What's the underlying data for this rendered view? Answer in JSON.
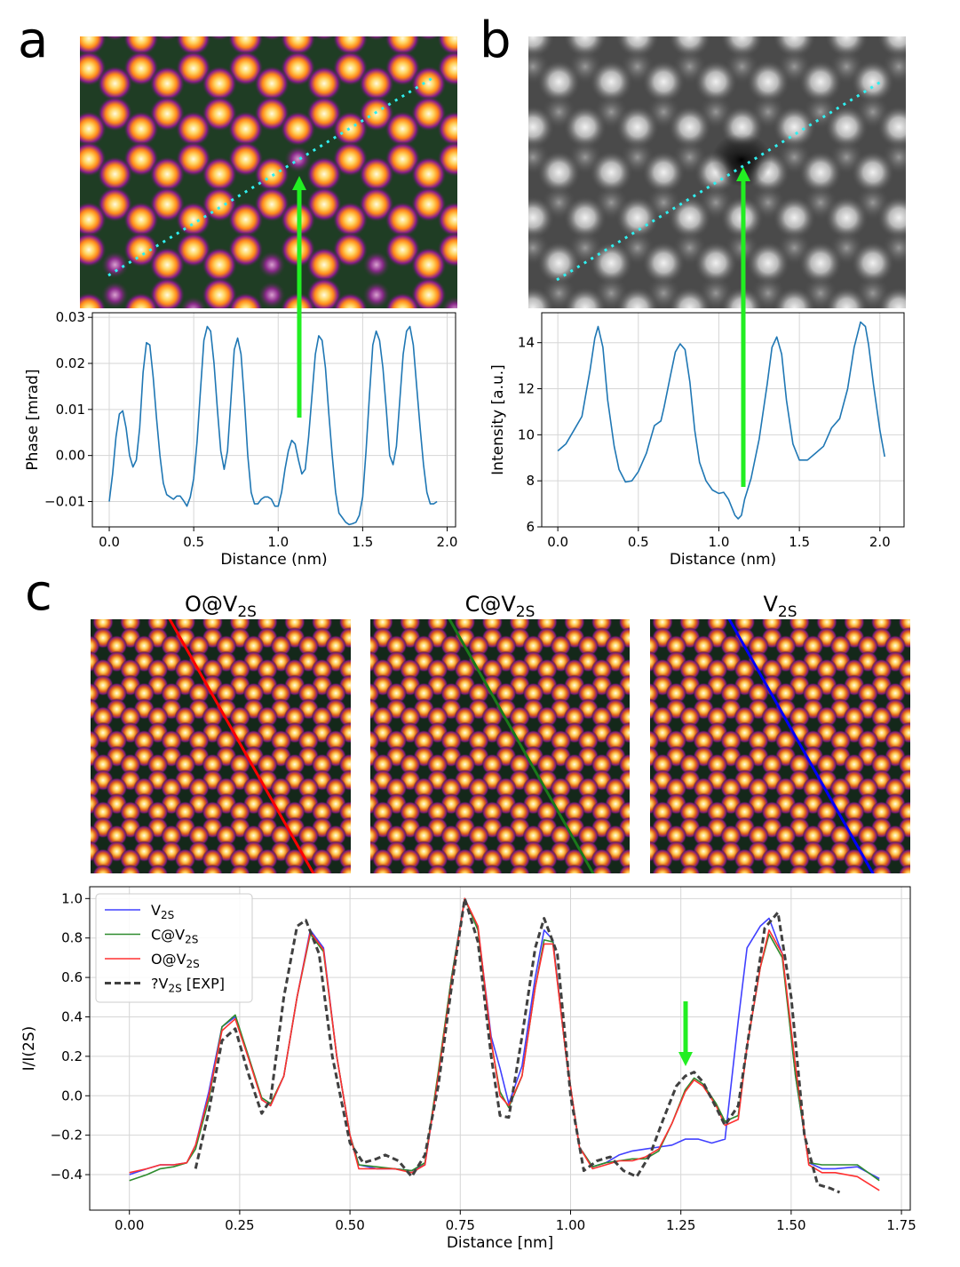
{
  "panels": {
    "a": "a",
    "b": "b",
    "c": "c"
  },
  "chart_data": [
    {
      "id": "a",
      "type": "line",
      "xlabel": "Distance (nm)",
      "ylabel": "Phase [mrad]",
      "xlim": [
        -0.1,
        2.05
      ],
      "ylim": [
        -0.0155,
        0.031
      ],
      "xticks": [
        0.0,
        0.5,
        1.0,
        1.5,
        2.0
      ],
      "xticklabels": [
        "0.0",
        "0.5",
        "1.0",
        "1.5",
        "2.0"
      ],
      "yticks": [
        -0.01,
        0.0,
        0.01,
        0.02,
        0.03
      ],
      "yticklabels": [
        "−0.01",
        "0.00",
        "0.01",
        "0.02",
        "0.03"
      ],
      "series": [
        {
          "name": "phase",
          "color": "#1f77b4",
          "x": [
            0.0,
            0.02,
            0.04,
            0.06,
            0.08,
            0.1,
            0.12,
            0.14,
            0.16,
            0.18,
            0.2,
            0.22,
            0.24,
            0.26,
            0.28,
            0.3,
            0.32,
            0.34,
            0.36,
            0.38,
            0.4,
            0.42,
            0.44,
            0.46,
            0.48,
            0.5,
            0.52,
            0.54,
            0.56,
            0.58,
            0.6,
            0.62,
            0.64,
            0.66,
            0.68,
            0.7,
            0.72,
            0.74,
            0.76,
            0.78,
            0.8,
            0.82,
            0.84,
            0.86,
            0.88,
            0.9,
            0.92,
            0.94,
            0.96,
            0.98,
            1.0,
            1.02,
            1.04,
            1.06,
            1.08,
            1.1,
            1.12,
            1.14,
            1.16,
            1.18,
            1.2,
            1.22,
            1.24,
            1.26,
            1.28,
            1.3,
            1.32,
            1.34,
            1.36,
            1.38,
            1.4,
            1.42,
            1.44,
            1.46,
            1.48,
            1.5,
            1.52,
            1.54,
            1.56,
            1.58,
            1.6,
            1.62,
            1.64,
            1.66,
            1.68,
            1.7,
            1.72,
            1.74,
            1.76,
            1.78,
            1.8,
            1.82,
            1.84,
            1.86,
            1.88,
            1.9,
            1.92,
            1.94
          ],
          "y": [
            -0.01,
            -0.004,
            0.004,
            0.009,
            0.0097,
            0.006,
            0.0,
            -0.0025,
            -0.001,
            0.006,
            0.018,
            0.0245,
            0.024,
            0.017,
            0.008,
            0.0,
            -0.006,
            -0.0085,
            -0.009,
            -0.0095,
            -0.0088,
            -0.0088,
            -0.0098,
            -0.011,
            -0.009,
            -0.005,
            0.003,
            0.014,
            0.025,
            0.028,
            0.027,
            0.02,
            0.01,
            0.001,
            -0.003,
            0.001,
            0.012,
            0.023,
            0.0255,
            0.022,
            0.012,
            0.0,
            -0.008,
            -0.0105,
            -0.0105,
            -0.0095,
            -0.009,
            -0.009,
            -0.0095,
            -0.011,
            -0.011,
            -0.008,
            -0.003,
            0.001,
            0.0033,
            0.0025,
            -0.001,
            -0.004,
            -0.003,
            0.004,
            0.013,
            0.022,
            0.026,
            0.025,
            0.019,
            0.009,
            0.0,
            -0.008,
            -0.0125,
            -0.0135,
            -0.0145,
            -0.015,
            -0.0148,
            -0.0145,
            -0.013,
            -0.009,
            0.001,
            0.013,
            0.024,
            0.027,
            0.025,
            0.019,
            0.01,
            0.0,
            -0.002,
            0.002,
            0.012,
            0.022,
            0.027,
            0.028,
            0.024,
            0.015,
            0.006,
            -0.002,
            -0.008,
            -0.0105,
            -0.0105,
            -0.01
          ]
        }
      ],
      "annotations": [
        "cyan dotted line profile across atomic lattice phase image",
        "green arrow marks vacancy at ~1.1 nm"
      ]
    },
    {
      "id": "b",
      "type": "line",
      "xlabel": "Distance (nm)",
      "ylabel": "Intensity [a.u.]",
      "xlim": [
        -0.1,
        2.15
      ],
      "ylim": [
        6.0,
        15.3
      ],
      "xticks": [
        0.0,
        0.5,
        1.0,
        1.5,
        2.0
      ],
      "xticklabels": [
        "0.0",
        "0.5",
        "1.0",
        "1.5",
        "2.0"
      ],
      "yticks": [
        6,
        8,
        10,
        12,
        14
      ],
      "yticklabels": [
        "6",
        "8",
        "10",
        "12",
        "14"
      ],
      "series": [
        {
          "name": "intensity",
          "color": "#1f77b4",
          "x": [
            0.0,
            0.05,
            0.1,
            0.15,
            0.2,
            0.23,
            0.25,
            0.28,
            0.31,
            0.35,
            0.38,
            0.42,
            0.46,
            0.5,
            0.55,
            0.6,
            0.64,
            0.66,
            0.7,
            0.73,
            0.76,
            0.79,
            0.82,
            0.85,
            0.88,
            0.92,
            0.96,
            1.0,
            1.03,
            1.06,
            1.1,
            1.12,
            1.14,
            1.16,
            1.2,
            1.25,
            1.3,
            1.33,
            1.36,
            1.39,
            1.42,
            1.46,
            1.5,
            1.55,
            1.6,
            1.65,
            1.7,
            1.75,
            1.8,
            1.84,
            1.88,
            1.91,
            1.93,
            1.96,
            2.0,
            2.03
          ],
          "y": [
            9.3,
            9.6,
            10.2,
            10.8,
            12.8,
            14.2,
            14.7,
            13.8,
            11.5,
            9.5,
            8.5,
            7.95,
            8.0,
            8.4,
            9.2,
            10.4,
            10.6,
            11.2,
            12.6,
            13.6,
            13.95,
            13.7,
            12.3,
            10.2,
            8.8,
            8.0,
            7.6,
            7.45,
            7.5,
            7.2,
            6.5,
            6.35,
            6.5,
            7.2,
            8.1,
            9.8,
            12.2,
            13.8,
            14.25,
            13.5,
            11.5,
            9.6,
            8.9,
            8.9,
            9.2,
            9.5,
            10.3,
            10.7,
            12.0,
            13.8,
            14.9,
            14.7,
            13.9,
            12.2,
            10.2,
            9.05
          ]
        }
      ],
      "annotations": [
        "cyan dotted line profile across atomic lattice intensity image",
        "green arrow marks vacancy at ~1.1 nm"
      ]
    },
    {
      "id": "c",
      "type": "line",
      "xlabel": "Distance [nm]",
      "ylabel": "I/I(2S)",
      "xlim": [
        -0.09,
        1.77
      ],
      "ylim": [
        -0.58,
        1.06
      ],
      "xticks": [
        0.0,
        0.25,
        0.5,
        0.75,
        1.0,
        1.25,
        1.5,
        1.75
      ],
      "xticklabels": [
        "0.00",
        "0.25",
        "0.50",
        "0.75",
        "1.00",
        "1.25",
        "1.50",
        "1.75"
      ],
      "yticks": [
        -0.4,
        -0.2,
        0.0,
        0.2,
        0.4,
        0.6,
        0.8,
        1.0
      ],
      "yticklabels": [
        "−0.4",
        "−0.2",
        "0.0",
        "0.2",
        "0.4",
        "0.6",
        "0.8",
        "1.0"
      ],
      "legend": {
        "location": "upper-left",
        "entries": [
          "V2S",
          "C@V2S",
          "O@V2S",
          "?V2S [EXP]"
        ]
      },
      "sim_titles": [
        "O@V2S",
        "C@V2S",
        "V2S"
      ],
      "sim_line_colors": [
        "#ff0000",
        "#1a7a1a",
        "#0000ff"
      ],
      "series": [
        {
          "name": "V2S",
          "color": "#4040ff",
          "dash": "solid",
          "x": [
            0.0,
            0.04,
            0.07,
            0.1,
            0.13,
            0.15,
            0.18,
            0.21,
            0.24,
            0.27,
            0.3,
            0.32,
            0.35,
            0.38,
            0.41,
            0.44,
            0.47,
            0.5,
            0.52,
            0.56,
            0.6,
            0.64,
            0.67,
            0.7,
            0.73,
            0.76,
            0.79,
            0.82,
            0.84,
            0.86,
            0.89,
            0.92,
            0.94,
            0.96,
            0.99,
            1.02,
            1.05,
            1.08,
            1.11,
            1.14,
            1.17,
            1.2,
            1.23,
            1.26,
            1.29,
            1.32,
            1.35,
            1.38,
            1.4,
            1.43,
            1.45,
            1.48,
            1.51,
            1.54,
            1.57,
            1.6,
            1.65,
            1.7
          ],
          "y": [
            -0.4,
            -0.37,
            -0.35,
            -0.35,
            -0.34,
            -0.25,
            0.02,
            0.35,
            0.4,
            0.2,
            -0.02,
            -0.05,
            0.1,
            0.5,
            0.84,
            0.75,
            0.2,
            -0.2,
            -0.35,
            -0.37,
            -0.37,
            -0.38,
            -0.35,
            0.1,
            0.6,
            1.0,
            0.85,
            0.3,
            0.14,
            -0.04,
            0.15,
            0.6,
            0.84,
            0.79,
            0.2,
            -0.26,
            -0.36,
            -0.34,
            -0.3,
            -0.28,
            -0.27,
            -0.26,
            -0.25,
            -0.22,
            -0.22,
            -0.24,
            -0.22,
            0.38,
            0.75,
            0.86,
            0.9,
            0.72,
            0.1,
            -0.34,
            -0.37,
            -0.37,
            -0.36,
            -0.42
          ]
        },
        {
          "name": "C@V2S",
          "color": "#2e8b2e",
          "dash": "solid",
          "x": [
            0.0,
            0.04,
            0.07,
            0.1,
            0.13,
            0.15,
            0.18,
            0.21,
            0.24,
            0.27,
            0.3,
            0.32,
            0.35,
            0.38,
            0.41,
            0.44,
            0.47,
            0.5,
            0.52,
            0.56,
            0.6,
            0.64,
            0.67,
            0.7,
            0.73,
            0.76,
            0.79,
            0.82,
            0.84,
            0.86,
            0.89,
            0.92,
            0.94,
            0.96,
            0.99,
            1.02,
            1.05,
            1.08,
            1.11,
            1.14,
            1.17,
            1.2,
            1.23,
            1.26,
            1.28,
            1.3,
            1.33,
            1.35,
            1.38,
            1.4,
            1.43,
            1.45,
            1.48,
            1.51,
            1.54,
            1.57,
            1.6,
            1.65,
            1.7
          ],
          "y": [
            -0.43,
            -0.4,
            -0.37,
            -0.36,
            -0.34,
            -0.27,
            -0.02,
            0.35,
            0.41,
            0.2,
            -0.01,
            -0.04,
            0.1,
            0.5,
            0.82,
            0.73,
            0.2,
            -0.2,
            -0.35,
            -0.36,
            -0.37,
            -0.38,
            -0.34,
            0.12,
            0.6,
            1.0,
            0.84,
            0.27,
            0.02,
            -0.06,
            0.1,
            0.55,
            0.79,
            0.78,
            0.2,
            -0.26,
            -0.36,
            -0.34,
            -0.33,
            -0.32,
            -0.32,
            -0.28,
            -0.14,
            0.03,
            0.09,
            0.06,
            -0.04,
            -0.13,
            -0.1,
            0.25,
            0.65,
            0.82,
            0.7,
            0.1,
            -0.34,
            -0.35,
            -0.35,
            -0.35,
            -0.43
          ]
        },
        {
          "name": "O@V2S",
          "color": "#ff3030",
          "dash": "solid",
          "x": [
            0.0,
            0.04,
            0.07,
            0.1,
            0.13,
            0.15,
            0.18,
            0.21,
            0.24,
            0.27,
            0.3,
            0.32,
            0.35,
            0.38,
            0.41,
            0.44,
            0.47,
            0.5,
            0.52,
            0.56,
            0.6,
            0.64,
            0.67,
            0.7,
            0.73,
            0.76,
            0.79,
            0.82,
            0.84,
            0.86,
            0.89,
            0.92,
            0.94,
            0.96,
            0.99,
            1.02,
            1.05,
            1.08,
            1.11,
            1.14,
            1.17,
            1.2,
            1.23,
            1.26,
            1.28,
            1.3,
            1.33,
            1.35,
            1.38,
            1.4,
            1.43,
            1.45,
            1.48,
            1.51,
            1.54,
            1.57,
            1.6,
            1.65,
            1.7
          ],
          "y": [
            -0.39,
            -0.37,
            -0.35,
            -0.35,
            -0.34,
            -0.25,
            0.0,
            0.33,
            0.39,
            0.19,
            -0.02,
            -0.05,
            0.1,
            0.5,
            0.83,
            0.74,
            0.2,
            -0.2,
            -0.37,
            -0.37,
            -0.37,
            -0.39,
            -0.35,
            0.1,
            0.58,
            1.0,
            0.86,
            0.28,
            0.0,
            -0.05,
            0.1,
            0.55,
            0.77,
            0.77,
            0.2,
            -0.26,
            -0.37,
            -0.35,
            -0.33,
            -0.33,
            -0.31,
            -0.27,
            -0.14,
            0.02,
            0.08,
            0.05,
            -0.05,
            -0.15,
            -0.12,
            0.25,
            0.65,
            0.84,
            0.72,
            0.15,
            -0.35,
            -0.39,
            -0.39,
            -0.41,
            -0.48
          ]
        },
        {
          "name": "?V2S [EXP]",
          "color": "#404040",
          "dash": "dashed",
          "x": [
            0.15,
            0.18,
            0.21,
            0.24,
            0.27,
            0.3,
            0.32,
            0.35,
            0.38,
            0.4,
            0.43,
            0.46,
            0.5,
            0.53,
            0.56,
            0.58,
            0.61,
            0.64,
            0.67,
            0.7,
            0.73,
            0.76,
            0.79,
            0.82,
            0.84,
            0.86,
            0.89,
            0.92,
            0.94,
            0.97,
            1.0,
            1.03,
            1.06,
            1.09,
            1.12,
            1.15,
            1.18,
            1.21,
            1.24,
            1.26,
            1.28,
            1.3,
            1.33,
            1.35,
            1.38,
            1.41,
            1.44,
            1.47,
            1.5,
            1.53,
            1.56,
            1.59,
            1.61
          ],
          "y": [
            -0.37,
            -0.08,
            0.28,
            0.34,
            0.11,
            -0.09,
            -0.02,
            0.5,
            0.86,
            0.89,
            0.72,
            0.2,
            -0.24,
            -0.34,
            -0.32,
            -0.3,
            -0.33,
            -0.41,
            -0.3,
            0.05,
            0.55,
            1.0,
            0.78,
            0.2,
            -0.1,
            -0.11,
            0.3,
            0.75,
            0.9,
            0.72,
            0.0,
            -0.38,
            -0.33,
            -0.31,
            -0.38,
            -0.41,
            -0.3,
            -0.12,
            0.05,
            0.1,
            0.12,
            0.07,
            -0.06,
            -0.15,
            -0.05,
            0.4,
            0.85,
            0.93,
            0.5,
            -0.2,
            -0.45,
            -0.47,
            -0.49
          ]
        }
      ],
      "annotations": [
        "green arrow marks dip at ~1.28 nm"
      ]
    }
  ]
}
